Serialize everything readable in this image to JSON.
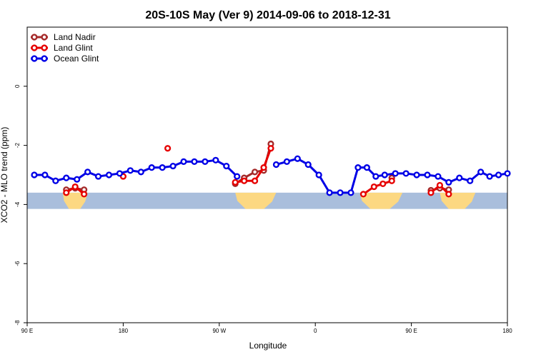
{
  "chart_data": {
    "type": "line",
    "title": "20S-10S May (Ver 9)   2014-09-06 to 2018-12-31",
    "xlabel": "Longitude",
    "ylabel": "XCO2 - MLO trend (ppm)",
    "xlim": [
      -90,
      180
    ],
    "ylim": [
      -8,
      2
    ],
    "x_ticks": [
      {
        "value": -90,
        "label": "90 E"
      },
      {
        "value": -36,
        "label": "180"
      },
      {
        "value": 18,
        "label": "90 W"
      },
      {
        "value": 72,
        "label": "0"
      },
      {
        "value": 126,
        "label": "90 E"
      },
      {
        "value": 180,
        "label": "180"
      }
    ],
    "y_ticks": [
      {
        "value": 0,
        "label": "0"
      },
      {
        "value": -2,
        "label": "-2"
      },
      {
        "value": -4,
        "label": "-4"
      },
      {
        "value": -6,
        "label": "-6"
      },
      {
        "value": -8,
        "label": "-8"
      }
    ],
    "legend_position": "top-left",
    "map_band": {
      "y_top": -3.6,
      "y_bottom": -4.15,
      "ocean_color": "#a9bedc",
      "land_color": "#fcd882"
    },
    "land_segments": [
      [
        -70,
        -56
      ],
      [
        27,
        50
      ],
      [
        97,
        121
      ],
      [
        142,
        162
      ]
    ],
    "series": [
      {
        "name": "Land Nadir",
        "color": "#a52a2a",
        "points": [
          [
            -68,
            -3.5
          ],
          [
            -63,
            -3.45
          ],
          [
            -58,
            -3.5
          ],
          null,
          [
            27,
            -3.3
          ],
          [
            32,
            -3.1
          ],
          [
            38,
            -2.9
          ],
          [
            43,
            -2.85
          ],
          [
            47,
            -1.95
          ],
          null,
          [
            115,
            -3.1
          ],
          null,
          [
            137,
            -3.52
          ],
          [
            142,
            -3.45
          ],
          [
            147,
            -3.5
          ]
        ]
      },
      {
        "name": "Land Glint",
        "color": "#e60000",
        "points": [
          [
            -68,
            -3.6
          ],
          [
            -63,
            -3.4
          ],
          [
            -58,
            -3.65
          ],
          null,
          [
            -36,
            -3.05
          ],
          null,
          [
            -11,
            -2.1
          ],
          null,
          [
            27,
            -3.25
          ],
          [
            32,
            -3.2
          ],
          [
            38,
            -3.2
          ],
          [
            43,
            -2.75
          ],
          [
            47,
            -2.1
          ],
          null,
          [
            99,
            -3.65
          ],
          [
            105,
            -3.4
          ],
          [
            110,
            -3.3
          ],
          [
            115,
            -3.2
          ],
          null,
          [
            137,
            -3.6
          ],
          [
            142,
            -3.35
          ],
          [
            147,
            -3.65
          ]
        ]
      },
      {
        "name": "Ocean Glint",
        "color": "#0000e6",
        "points": [
          [
            -86,
            -3.0
          ],
          [
            -80,
            -3.0
          ],
          [
            -74,
            -3.2
          ],
          [
            -68,
            -3.1
          ],
          [
            -62,
            -3.15
          ],
          [
            -56,
            -2.9
          ],
          [
            -50,
            -3.05
          ],
          [
            -44,
            -3.0
          ],
          [
            -38,
            -2.95
          ],
          [
            -32,
            -2.85
          ],
          [
            -26,
            -2.9
          ],
          [
            -20,
            -2.75
          ],
          [
            -14,
            -2.75
          ],
          [
            -8,
            -2.7
          ],
          [
            -2,
            -2.55
          ],
          [
            4,
            -2.55
          ],
          [
            10,
            -2.55
          ],
          [
            16,
            -2.5
          ],
          [
            22,
            -2.7
          ],
          [
            28,
            -3.05
          ],
          null,
          [
            50,
            -2.65
          ],
          [
            56,
            -2.55
          ],
          [
            62,
            -2.45
          ],
          [
            68,
            -2.65
          ],
          [
            74,
            -3.0
          ],
          [
            80,
            -3.6
          ],
          [
            86,
            -3.6
          ],
          [
            92,
            -3.6
          ],
          [
            96,
            -2.75
          ],
          [
            101,
            -2.75
          ],
          [
            106,
            -3.05
          ],
          [
            111,
            -3.0
          ],
          [
            117,
            -2.95
          ],
          [
            123,
            -2.95
          ],
          [
            129,
            -3.0
          ],
          [
            135,
            -3.0
          ],
          [
            141,
            -3.05
          ],
          [
            147,
            -3.25
          ],
          [
            153,
            -3.1
          ],
          [
            159,
            -3.2
          ],
          [
            165,
            -2.9
          ],
          [
            170,
            -3.05
          ],
          [
            175,
            -3.0
          ],
          [
            180,
            -2.95
          ]
        ]
      }
    ]
  }
}
